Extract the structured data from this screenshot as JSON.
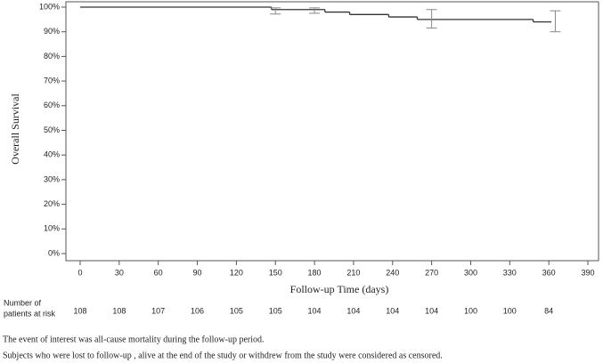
{
  "chart_data": {
    "type": "km",
    "y_label": "Overall Survival",
    "x_label": "Follow-up Time (days)",
    "xlim": [
      0,
      390
    ],
    "xticks": [
      0,
      30,
      60,
      90,
      120,
      150,
      180,
      210,
      240,
      270,
      300,
      330,
      360,
      390
    ],
    "ylim": [
      0,
      100
    ],
    "yticks": [
      {
        "value": 0,
        "label": "0%"
      },
      {
        "value": 10,
        "label": "10%"
      },
      {
        "value": 20,
        "label": "20%"
      },
      {
        "value": 30,
        "label": "30%"
      },
      {
        "value": 40,
        "label": "40%"
      },
      {
        "value": 50,
        "label": "50%"
      },
      {
        "value": 60,
        "label": "60%"
      },
      {
        "value": 70,
        "label": "70%"
      },
      {
        "value": 80,
        "label": "80%"
      },
      {
        "value": 90,
        "label": "90%"
      },
      {
        "value": 100,
        "label": "100%"
      }
    ],
    "series": [
      {
        "color": "#333333",
        "x": [
          0,
          147,
          188,
          207,
          237,
          259,
          348,
          362
        ],
        "values": [
          100,
          99,
          98,
          97,
          96,
          95,
          94,
          94
        ]
      }
    ],
    "error_bars": {
      "color": "#888888",
      "x": [
        150,
        180,
        270,
        365
      ],
      "lower": [
        97.2,
        97.5,
        91.5,
        90
      ],
      "upper": [
        99.7,
        99.7,
        99,
        98.5
      ]
    },
    "at_risk": {
      "label_lines": [
        "Number of",
        "patients at risk"
      ],
      "values": [
        108,
        108,
        107,
        106,
        105,
        105,
        104,
        104,
        104,
        104,
        100,
        100,
        84
      ]
    }
  },
  "footnotes": [
    "The event of interest was all-cause mortality during the follow-up period.",
    "Subjects who were lost to follow-up , alive at the end of the study or withdrew from the study were considered as censored."
  ]
}
